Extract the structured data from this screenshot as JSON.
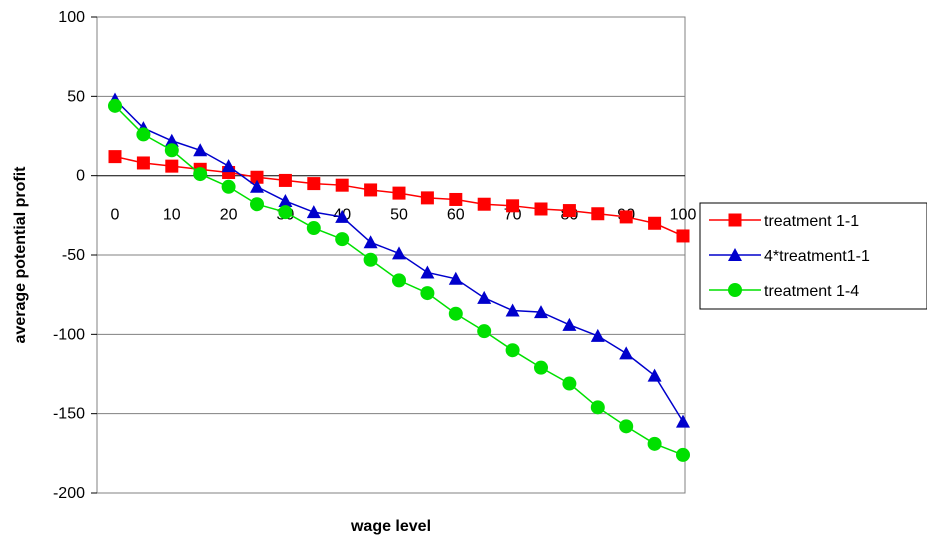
{
  "chart_data": {
    "type": "line",
    "title": "",
    "xlabel": "wage level",
    "ylabel": "average potential profit",
    "x": [
      0,
      5,
      10,
      15,
      20,
      25,
      30,
      35,
      40,
      45,
      50,
      55,
      60,
      65,
      70,
      75,
      80,
      85,
      90,
      95,
      100
    ],
    "x_ticks": [
      "0",
      "10",
      "20",
      "30",
      "40",
      "50",
      "60",
      "70",
      "80",
      "90",
      "100"
    ],
    "x_tick_values": [
      0,
      10,
      20,
      30,
      40,
      50,
      60,
      70,
      80,
      90,
      100
    ],
    "xlim": [
      0,
      100
    ],
    "y_ticks": [
      "100",
      "50",
      "0",
      "-50",
      "-100",
      "-150",
      "-200"
    ],
    "y_tick_values": [
      100,
      50,
      0,
      -50,
      -100,
      -150,
      -200
    ],
    "ylim": [
      -200,
      100
    ],
    "grid": "horizontal",
    "legend_position": "right",
    "series": [
      {
        "name": "treatment 1-1",
        "color": "#ff0000",
        "marker": "square",
        "values": [
          12,
          8,
          6,
          4,
          2,
          -1,
          -3,
          -5,
          -6,
          -9,
          -11,
          -14,
          -15,
          -18,
          -19,
          -21,
          -22,
          -24,
          -26,
          -30,
          -38
        ]
      },
      {
        "name": "4*treatment1-1",
        "color": "#0000cc",
        "marker": "triangle",
        "values": [
          48,
          30,
          22,
          16,
          6,
          -7,
          -16,
          -23,
          -26,
          -42,
          -49,
          -61,
          -65,
          -77,
          -85,
          -86,
          -94,
          -101,
          -112,
          -126,
          -155
        ]
      },
      {
        "name": "treatment 1-4",
        "color": "#00e000",
        "marker": "circle",
        "values": [
          44,
          26,
          16,
          1,
          -7,
          -18,
          -23,
          -33,
          -40,
          -53,
          -66,
          -74,
          -87,
          -98,
          -110,
          -121,
          -131,
          -146,
          -158,
          -169,
          -176
        ]
      }
    ]
  }
}
